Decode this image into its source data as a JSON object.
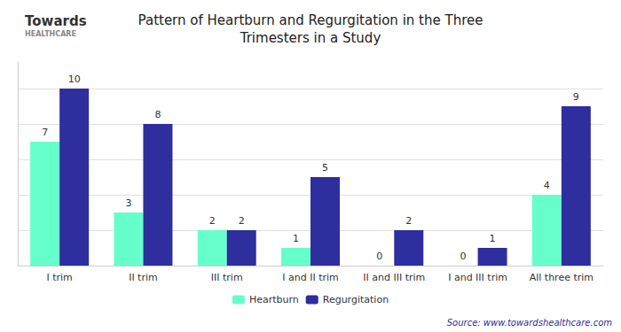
{
  "chart_data": {
    "type": "bar",
    "title": "Pattern of Heartburn and Regurgitation in the Three\nTrimesters in a Study",
    "categories": [
      "I trim",
      "II trim",
      "III trim",
      "I and II trim",
      "II and III trim",
      "I and III trim",
      "All three trim"
    ],
    "series": [
      {
        "name": "Heartburn",
        "color": "#66FFCC",
        "values": [
          7,
          3,
          2,
          1,
          0,
          0,
          4
        ]
      },
      {
        "name": "Regurgitation",
        "color": "#2E2E9E",
        "values": [
          10,
          8,
          2,
          5,
          2,
          1,
          9
        ]
      }
    ],
    "ylim": [
      0,
      11.5
    ],
    "yticks": [
      2,
      4,
      6,
      8,
      10
    ],
    "grid": true,
    "tick_labels": "x",
    "data_labels": true,
    "legend": "bottom",
    "annotations": [
      {
        "text": "Towards",
        "position": "top-left"
      },
      {
        "text": "HEALTHCARE",
        "position": "top-left"
      },
      {
        "text": "Source: www.towardshealthcare.com",
        "position": "bottom-right"
      }
    ]
  }
}
